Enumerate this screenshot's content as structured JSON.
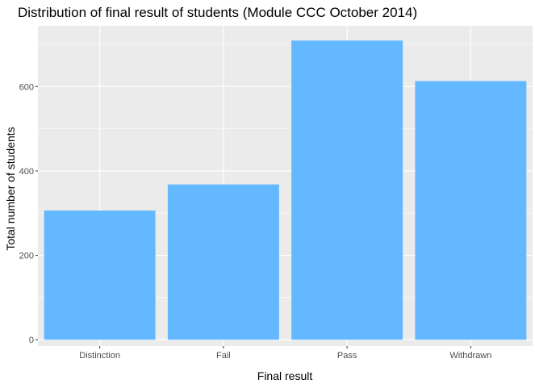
{
  "chart_data": {
    "type": "bar",
    "title": "Distribution of final result of students (Module CCC October 2014)",
    "xlabel": "Final result",
    "ylabel": "Total number of students",
    "categories": [
      "Distinction",
      "Fail",
      "Pass",
      "Withdrawn"
    ],
    "values": [
      306,
      368,
      709,
      613
    ],
    "ylim": [
      -15,
      744
    ],
    "yticks": [
      0,
      200,
      400,
      600
    ],
    "ytick_labels": [
      "0",
      "200",
      "400",
      "600"
    ],
    "grid": true,
    "legend": "none",
    "colors": {
      "bar": "#63B8FF",
      "panel": "#EBEBEB",
      "grid_major": "#FFFFFF",
      "tick_text": "#4D4D4D",
      "tick_mark": "#333333"
    }
  }
}
